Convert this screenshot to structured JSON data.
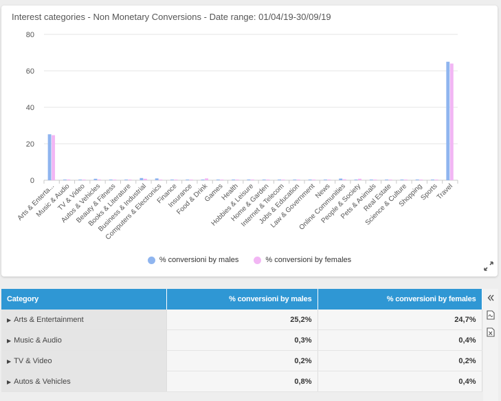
{
  "chart": {
    "title": "Interest categories - Non Monetary Conversions - Date range: 01/04/19-30/09/19"
  },
  "chart_data": {
    "type": "bar",
    "title": "Interest categories - Non Monetary Conversions - Date range: 01/04/19-30/09/19",
    "categories": [
      "Arts & Enterta...",
      "Music & Audio",
      "TV & Video",
      "Autos & Vehicles",
      "Beauty & Fitness",
      "Books & Literature",
      "Business & Industrial",
      "Computers & Electronics",
      "Finance",
      "Insurance",
      "Food & Drink",
      "Games",
      "Health",
      "Hobbies & Leisure",
      "Home & Garden",
      "Internet & Telecom",
      "Jobs & Education",
      "Law & Government",
      "News",
      "Online Communities",
      "People & Society",
      "Pets & Animals",
      "Real Estate",
      "Science & Culture",
      "Shopping",
      "Sports",
      "Travel"
    ],
    "series": [
      {
        "name": "% conversioni by males",
        "color": "#8fb5ef",
        "values": [
          25.2,
          0.3,
          0.2,
          0.8,
          0.1,
          0.1,
          1.2,
          1.0,
          0.1,
          0.1,
          0.3,
          0.1,
          0.2,
          0.4,
          0.2,
          0.2,
          0.2,
          0.1,
          0.1,
          0.9,
          0.3,
          0.2,
          0.1,
          0.2,
          0.4,
          0.1,
          65.0
        ]
      },
      {
        "name": "% conversioni by females",
        "color": "#f2b6f4",
        "values": [
          24.7,
          0.4,
          0.2,
          0.4,
          0.3,
          0.2,
          0.8,
          0.3,
          0.1,
          0.1,
          1.0,
          0.1,
          0.2,
          0.4,
          0.2,
          0.2,
          0.2,
          0.1,
          0.1,
          0.5,
          0.8,
          0.3,
          0.1,
          0.2,
          0.3,
          0.2,
          64.0
        ]
      }
    ],
    "ylim": [
      0,
      80
    ],
    "yticks": [
      "0",
      "20",
      "40",
      "60",
      "80"
    ],
    "grid": true,
    "legend": "bottom-center"
  },
  "table": {
    "headers": [
      "Category",
      "% conversioni by males",
      "% conversioni by females"
    ],
    "rows": [
      {
        "category": "Arts & Entertainment",
        "males": "25,2%",
        "females": "24,7%"
      },
      {
        "category": "Music & Audio",
        "males": "0,3%",
        "females": "0,4%"
      },
      {
        "category": "TV & Video",
        "males": "0,2%",
        "females": "0,2%"
      },
      {
        "category": "Autos & Vehicles",
        "males": "0,8%",
        "females": "0,4%"
      }
    ]
  },
  "icons": {
    "collapse": "double-chevron-left-icon",
    "pdf": "pdf-export-icon",
    "excel": "excel-export-icon",
    "expand": "expand-arrows-icon",
    "row_caret": "caret-right-icon"
  }
}
